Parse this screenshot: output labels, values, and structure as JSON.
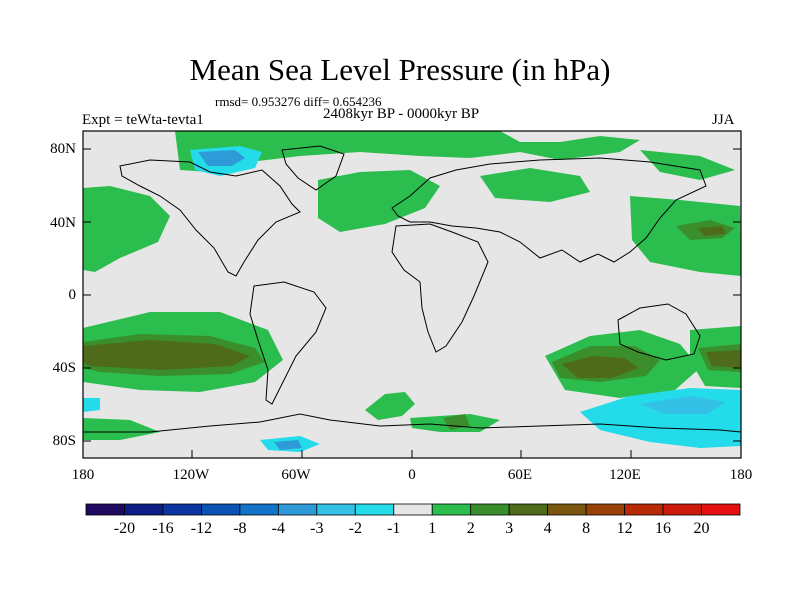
{
  "title": "Mean Sea Level Pressure (in hPa)",
  "stats": "rmsd= 0.953276 diff= 0.654236",
  "experiment": "Expt = teWta-tevta1",
  "period": "2408kyr BP - 0000kyr BP",
  "season": "JJA",
  "lat_ticks": [
    "80N",
    "40N",
    "0",
    "40S",
    "80S"
  ],
  "lon_ticks": [
    "180",
    "120W",
    "60W",
    "0",
    "60E",
    "120E",
    "180"
  ],
  "colorbar": {
    "labels": [
      "-20",
      "-16",
      "-12",
      "-8",
      "-4",
      "-3",
      "-2",
      "-1",
      "1",
      "2",
      "3",
      "4",
      "8",
      "12",
      "16",
      "20"
    ],
    "colors": [
      "#1f0a5f",
      "#0c1e86",
      "#0a35a0",
      "#0a53b5",
      "#1273c8",
      "#2e9bd8",
      "#33c1e6",
      "#23dbe9",
      "#e6e6e6",
      "#2cbd4f",
      "#3a8f2c",
      "#4e6b1b",
      "#7b5611",
      "#994208",
      "#b82a06",
      "#cc1a0a",
      "#e61010"
    ]
  },
  "colors": {
    "background_near_zero": "#e6e6e6",
    "positive_1_2": "#2cbd4f",
    "positive_2_3": "#3a8f2c",
    "positive_3_4": "#4e6b1b",
    "negative_1_2": "#23dbe9",
    "negative_2_3": "#33c1e6",
    "negative_3_4": "#2e9bd8",
    "negative_4_8": "#1273c8"
  }
}
